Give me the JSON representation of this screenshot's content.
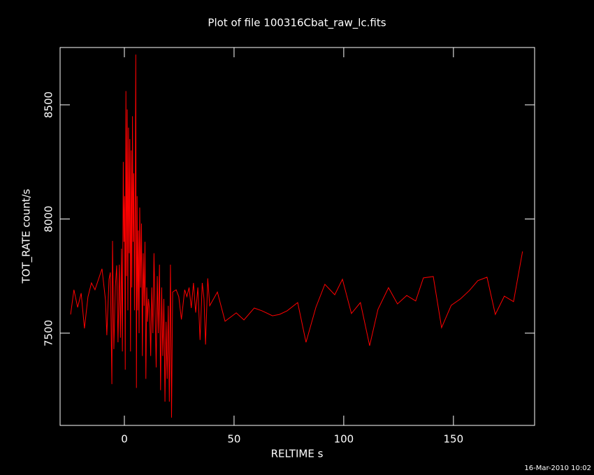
{
  "chart_data": {
    "type": "line",
    "title": "Plot of file 100316Cbat_raw_lc.fits",
    "x_label": "RELTIME  s",
    "y_label": "TOT_RATE  count/s",
    "timestamp": "16-Mar-2010 10:02",
    "xlim": [
      -29.3,
      187
    ],
    "ylim": [
      7096,
      8751
    ],
    "xticks": [
      0,
      50,
      100,
      150
    ],
    "yticks": [
      7500,
      8000,
      8500
    ],
    "series": [
      {
        "color": "#ff0000",
        "x": [
          -24.5,
          -23,
          -21.3,
          -19.7,
          -18.2,
          -16.6,
          -15,
          -13.4,
          -11.8,
          -10.2,
          -8.6,
          -8,
          -7,
          -6.4,
          -5.7,
          -5.4,
          -4.8,
          -4.1,
          -3.5,
          -2.9,
          -2.3,
          -1.8,
          -1.3,
          -0.9,
          -0.5,
          -0.2,
          0.1,
          0.4,
          0.7,
          1.0,
          1.3,
          1.6,
          1.9,
          2.2,
          2.5,
          2.8,
          3.1,
          3.4,
          3.7,
          4.0,
          4.3,
          4.6,
          4.9,
          5.2,
          5.5,
          5.8,
          6.1,
          6.4,
          6.7,
          7.0,
          7.4,
          7.8,
          8.2,
          8.6,
          9.0,
          9.4,
          9.8,
          10.2,
          10.6,
          11.0,
          11.5,
          12.0,
          12.5,
          13.0,
          13.5,
          14.0,
          14.5,
          15.0,
          15.5,
          16.0,
          16.5,
          17.0,
          17.5,
          18.0,
          18.5,
          19.0,
          19.5,
          20.0,
          20.5,
          21.0,
          21.5,
          22.0,
          23.6,
          24.8,
          26,
          27.5,
          28.5,
          29.5,
          30.5,
          31.5,
          32.5,
          33.5,
          34.5,
          35.5,
          36.3,
          37,
          38,
          38.9,
          42.4,
          45.9,
          51,
          54.5,
          59.2,
          62.7,
          67.5,
          70.7,
          74.2,
          79,
          82.8,
          87.3,
          91.4,
          95.9,
          99.4,
          103.5,
          107.6,
          111.8,
          115.6,
          120.4,
          124.5,
          128.7,
          132.8,
          136.3,
          140.8,
          144.6,
          149,
          153.2,
          157.3,
          161.1,
          165.3,
          169.1,
          173.2,
          177.4,
          181.5
        ],
        "values": [
          7582,
          7690,
          7613,
          7675,
          7521,
          7659,
          7720,
          7690,
          7736,
          7782,
          7644,
          7491,
          7736,
          7766,
          7277,
          7904,
          7430,
          7705,
          7797,
          7460,
          7800,
          7480,
          7870,
          7420,
          8250,
          7900,
          8100,
          7340,
          8560,
          7750,
          8480,
          7600,
          8400,
          7850,
          8350,
          7420,
          8300,
          7700,
          8450,
          7900,
          8200,
          7600,
          8000,
          8720,
          7260,
          8100,
          7600,
          7950,
          7500,
          8050,
          7700,
          7980,
          7400,
          7850,
          7620,
          7900,
          7300,
          7700,
          7550,
          7650,
          7600,
          7400,
          7700,
          7500,
          7850,
          7600,
          7350,
          7750,
          7500,
          7800,
          7250,
          7700,
          7400,
          7650,
          7200,
          7550,
          7300,
          7620,
          7200,
          7800,
          7130,
          7680,
          7690,
          7660,
          7560,
          7690,
          7660,
          7700,
          7610,
          7720,
          7590,
          7700,
          7470,
          7720,
          7650,
          7450,
          7740,
          7620,
          7680,
          7552,
          7589,
          7558,
          7610,
          7598,
          7576,
          7582,
          7598,
          7634,
          7460,
          7613,
          7714,
          7668,
          7736,
          7586,
          7634,
          7445,
          7604,
          7699,
          7628,
          7665,
          7641,
          7742,
          7748,
          7524,
          7622,
          7650,
          7687,
          7730,
          7745,
          7582,
          7662,
          7638,
          7858
        ]
      }
    ]
  }
}
